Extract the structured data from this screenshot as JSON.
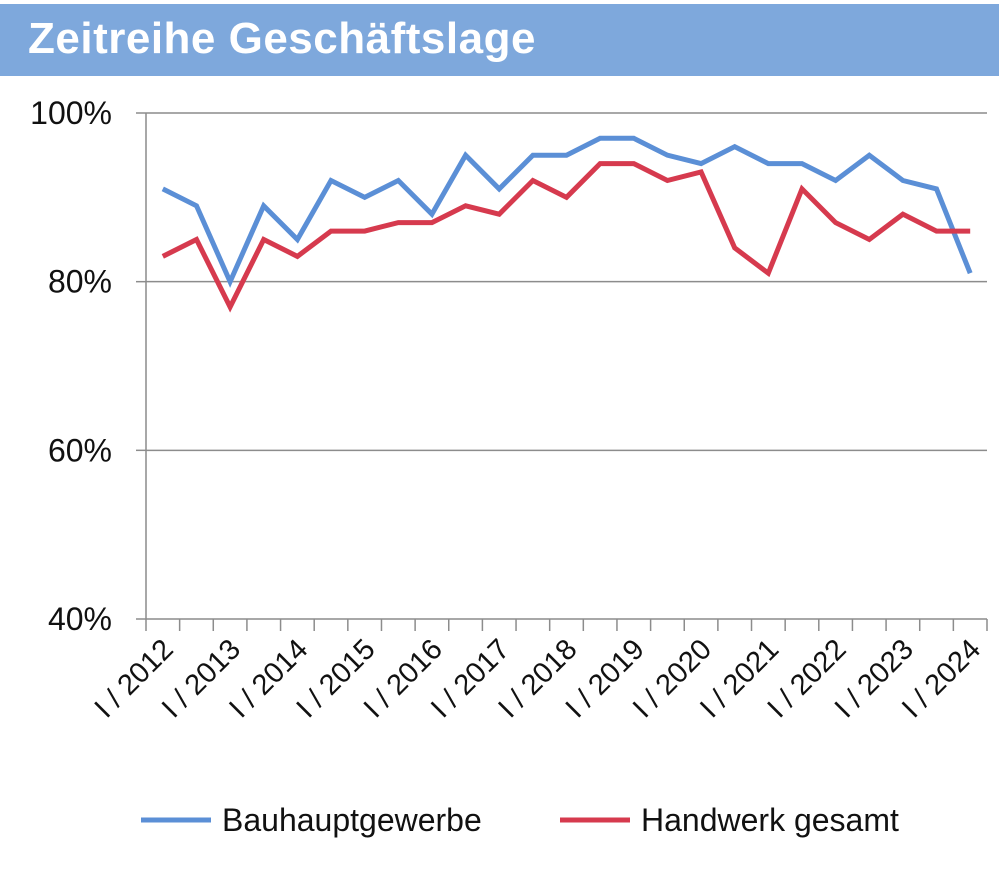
{
  "chart_data": {
    "type": "line",
    "title": "Zeitreihe Geschäftslage",
    "y_ticks": [
      "100%",
      "80%",
      "60%",
      "40%"
    ],
    "y_tick_values": [
      100,
      80,
      60,
      40
    ],
    "ylim": [
      40,
      100
    ],
    "year_labels": [
      "I / 2012",
      "I / 2013",
      "I / 2014",
      "I / 2015",
      "I / 2016",
      "I / 2017",
      "I / 2018",
      "I / 2019",
      "I / 2020",
      "I / 2021",
      "I / 2022",
      "I / 2023",
      "I / 2024"
    ],
    "periods_per_year": 2,
    "grid": true,
    "legend_position": "bottom",
    "series": [
      {
        "name": "Bauhauptgewerbe",
        "color": "#5B8FD6",
        "values": [
          91,
          89,
          80,
          89,
          85,
          92,
          90,
          92,
          88,
          95,
          91,
          95,
          95,
          97,
          97,
          95,
          94,
          96,
          94,
          94,
          92,
          95,
          92,
          91,
          81
        ]
      },
      {
        "name": "Handwerk gesamt",
        "color": "#D63A4E",
        "values": [
          83,
          85,
          77,
          85,
          83,
          86,
          86,
          87,
          87,
          89,
          88,
          92,
          90,
          94,
          94,
          92,
          93,
          84,
          81,
          91,
          87,
          85,
          88,
          86,
          86
        ]
      }
    ]
  }
}
